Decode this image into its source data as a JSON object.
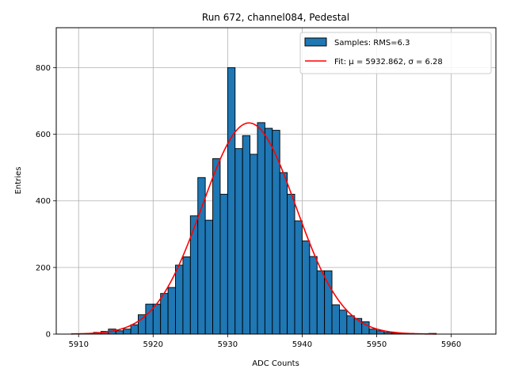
{
  "chart_data": {
    "type": "bar",
    "title": "Run 672, channel084, Pedestal",
    "xlabel": "ADC Counts",
    "ylabel": "Entries",
    "xlim": [
      5907,
      5966
    ],
    "ylim": [
      0,
      920
    ],
    "xticks": [
      5910,
      5920,
      5930,
      5940,
      5950,
      5960
    ],
    "yticks": [
      0,
      200,
      400,
      600,
      800
    ],
    "grid": true,
    "legend": {
      "placement": "top-right",
      "entries": [
        {
          "label": "Samples: RMS=6.3",
          "kind": "bar",
          "color": "#1f77b4"
        },
        {
          "label": "Fit: μ = 5932.862, σ = 6.28",
          "kind": "line",
          "color": "#ff0000"
        }
      ]
    },
    "histogram": {
      "name": "Samples: RMS=6.3",
      "color": "#1f77b4",
      "edge_color": "#000000",
      "bin_edges_start": 5910,
      "bin_width": 1,
      "counts": [
        0,
        2,
        5,
        8,
        15,
        10,
        15,
        28,
        58,
        90,
        90,
        122,
        140,
        207,
        232,
        355,
        470,
        342,
        527,
        420,
        800,
        557,
        596,
        540,
        635,
        618,
        612,
        485,
        420,
        340,
        280,
        233,
        190,
        190,
        88,
        72,
        55,
        47,
        37,
        15,
        10,
        5,
        3,
        2,
        2,
        1,
        1,
        2
      ]
    },
    "fit": {
      "name": "Fit: μ = 5932.862, σ = 6.28",
      "color": "#ff0000",
      "mu": 5932.862,
      "sigma": 6.28,
      "amplitude": 634,
      "x_range": [
        5909,
        5958
      ]
    }
  }
}
